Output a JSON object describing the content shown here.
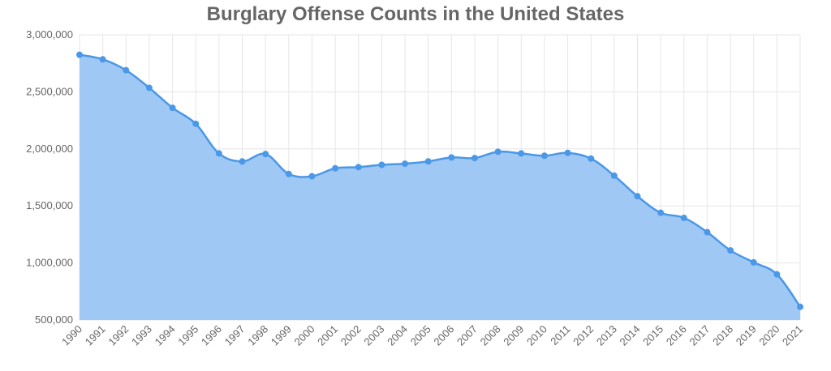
{
  "chart_data": {
    "type": "area",
    "title": "Burglary Offense Counts in the United States",
    "xlabel": "",
    "ylabel": "",
    "ylim": [
      500000,
      3000000
    ],
    "y_ticks": [
      "500,000",
      "1,000,000",
      "1,500,000",
      "2,000,000",
      "2,500,000",
      "3,000,000"
    ],
    "grid": true,
    "legend": "none",
    "colors": {
      "line": "#4a98e8",
      "fill": "#a0c8f4",
      "grid": "#e6e6e6"
    },
    "categories": [
      "1990",
      "1991",
      "1992",
      "1993",
      "1994",
      "1995",
      "1996",
      "1997",
      "1998",
      "1999",
      "2000",
      "2001",
      "2002",
      "2003",
      "2004",
      "2005",
      "2006",
      "2007",
      "2008",
      "2009",
      "2010",
      "2011",
      "2012",
      "2013",
      "2014",
      "2015",
      "2016",
      "2017",
      "2018",
      "2019",
      "2020",
      "2021"
    ],
    "series": [
      {
        "values": [
          2825000,
          2785000,
          2690000,
          2535000,
          2360000,
          2220000,
          1960000,
          1890000,
          1955000,
          1780000,
          1760000,
          1830000,
          1840000,
          1860000,
          1870000,
          1890000,
          1925000,
          1920000,
          1975000,
          1960000,
          1940000,
          1965000,
          1915000,
          1765000,
          1585000,
          1440000,
          1395000,
          1270000,
          1110000,
          1005000,
          900000,
          615000
        ]
      }
    ]
  }
}
